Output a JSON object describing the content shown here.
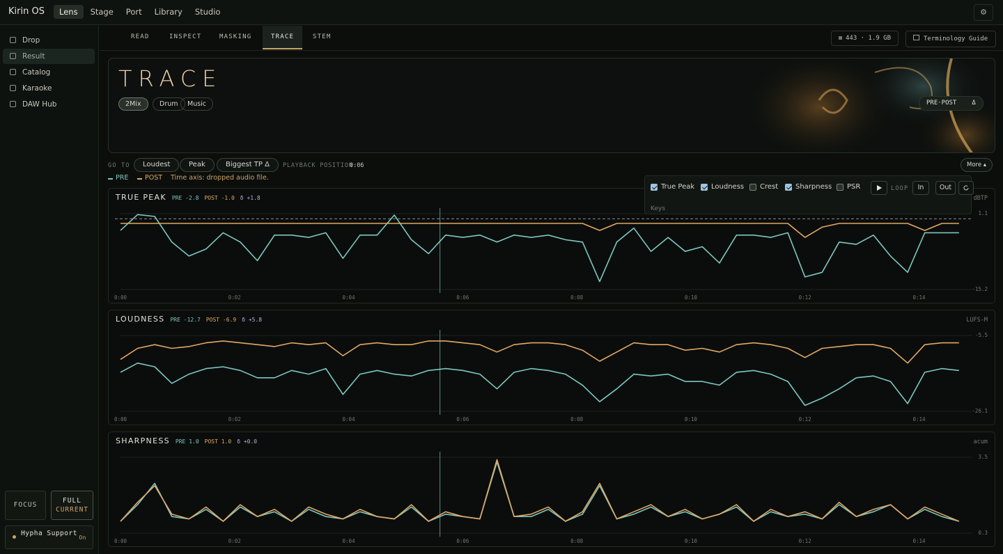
{
  "top_bar": {
    "brand": "Kirin OS",
    "tabs": [
      "Lens",
      "Stage",
      "Port",
      "Library",
      "Studio"
    ],
    "active_tab": 0,
    "settings_icon": "⚙"
  },
  "sidebar": {
    "items": [
      "Drop",
      "Result",
      "Catalog",
      "Karaoke",
      "DAW Hub"
    ],
    "active": 1,
    "focus": "FOCUS",
    "full": "FULL",
    "full_sub": "CURRENT",
    "support": "Hypha Support",
    "support_state": "On"
  },
  "sub_tabs": {
    "items": [
      "READ",
      "INSPECT",
      "MASKING",
      "TRACE",
      "STEM"
    ],
    "active": 3,
    "stats": "443 · 1.9 GB",
    "guide": "Terminology Guide"
  },
  "hero": {
    "title": "TRACE",
    "chips": [
      "2Mix",
      "Drum",
      "Music"
    ],
    "active_chip": 0,
    "compare": "PRE·POST",
    "delta": "Δ"
  },
  "goto": {
    "label": "GO TO",
    "buttons": [
      "Loudest",
      "Peak",
      "Biggest TP Δ"
    ],
    "position_label": "PLAYBACK POSITION",
    "position": "0:06",
    "more": "More ▴"
  },
  "legend_note": "Time axis: dropped audio file.",
  "options": {
    "checks": [
      {
        "label": "True Peak",
        "checked": true
      },
      {
        "label": "Loudness",
        "checked": true
      },
      {
        "label": "Crest",
        "checked": false
      },
      {
        "label": "Sharpness",
        "checked": true
      },
      {
        "label": "PSR",
        "checked": false
      }
    ],
    "loop": "LOOP",
    "loop_buttons": [
      "In",
      "Out"
    ],
    "keys": "Keys"
  },
  "chart_data": [
    {
      "type": "line",
      "title": "TRUE PEAK",
      "unit": "dBTP",
      "stats": [
        {
          "label": "PRE",
          "value": "-2.8"
        },
        {
          "label": "POST",
          "value": "-1.0"
        },
        {
          "label": "δ",
          "value": "+1.8"
        }
      ],
      "x": [
        0,
        0.3,
        0.6,
        0.9,
        1.2,
        1.5,
        1.8,
        2.1,
        2.4,
        2.7,
        3,
        3.3,
        3.6,
        3.9,
        4.2,
        4.5,
        4.8,
        5.1,
        5.4,
        5.7,
        6,
        6.3,
        6.6,
        6.9,
        7.2,
        7.5,
        7.8,
        8.1,
        8.4,
        8.7,
        9,
        9.3,
        9.6,
        9.9,
        10.2,
        10.5,
        10.8,
        11.1,
        11.4,
        11.7,
        12,
        12.3,
        12.6,
        12.9,
        13.2,
        13.5,
        13.8,
        14.1,
        14.4,
        14.7
      ],
      "series": [
        {
          "name": "PRE",
          "color": "#7cc8c0",
          "values": [
            -2.5,
            0.9,
            0.5,
            -5,
            -8,
            -6.5,
            -3,
            -5,
            -9,
            -3.5,
            -3.5,
            -4,
            -3,
            -8.5,
            -3.5,
            -3.5,
            0.8,
            -4.5,
            -7.5,
            -3.5,
            -4,
            -3.5,
            -5,
            -3.5,
            -4,
            -3.5,
            -4.5,
            -5,
            -13.5,
            -5,
            -2,
            -7,
            -4,
            -7,
            -6,
            -9.5,
            -3.5,
            -3.5,
            -4,
            -3,
            -12.5,
            -11.5,
            -5,
            -5.5,
            -3.5,
            -8,
            -11.5,
            -3,
            -3,
            -3
          ]
        },
        {
          "name": "POST",
          "color": "#e2a864",
          "values": [
            -1,
            -1,
            -1,
            -1,
            -1,
            -1,
            -1,
            -1,
            -1,
            -1,
            -1,
            -1,
            -1,
            -1,
            -1,
            -1,
            -1,
            -1,
            -1,
            -1,
            -1,
            -1,
            -1,
            -1,
            -1,
            -1,
            -1,
            -1,
            -2.5,
            -1,
            -1,
            -1,
            -1,
            -1,
            -1,
            -1,
            -1,
            -1,
            -1,
            -1,
            -4,
            -1.8,
            -1,
            -1,
            -1,
            -1,
            -1,
            -2.5,
            -1,
            -1
          ]
        }
      ],
      "xlim": [
        0,
        14.8
      ],
      "xticks": [
        {
          "value": 0,
          "label": "0:00"
        },
        {
          "value": 2,
          "label": "0:02"
        },
        {
          "value": 4,
          "label": "0:04"
        },
        {
          "value": 6,
          "label": "0:06"
        },
        {
          "value": 8,
          "label": "0:08"
        },
        {
          "value": 10,
          "label": "0:10"
        },
        {
          "value": 12,
          "label": "0:12"
        },
        {
          "value": 14,
          "label": "0:14"
        }
      ],
      "ylim": [
        -15.2,
        1.1
      ],
      "yticks": [
        1.1,
        -15.2
      ],
      "reference_line": 0,
      "playhead": 5.6,
      "grid": true
    },
    {
      "type": "line",
      "title": "LOUDNESS",
      "unit": "LUFS-M",
      "stats": [
        {
          "label": "PRE",
          "value": "-12.7"
        },
        {
          "label": "POST",
          "value": "-6.9"
        },
        {
          "label": "δ",
          "value": "+5.8"
        }
      ],
      "x": [
        0,
        0.3,
        0.6,
        0.9,
        1.2,
        1.5,
        1.8,
        2.1,
        2.4,
        2.7,
        3,
        3.3,
        3.6,
        3.9,
        4.2,
        4.5,
        4.8,
        5.1,
        5.4,
        5.7,
        6,
        6.3,
        6.6,
        6.9,
        7.2,
        7.5,
        7.8,
        8.1,
        8.4,
        8.7,
        9,
        9.3,
        9.6,
        9.9,
        10.2,
        10.5,
        10.8,
        11.1,
        11.4,
        11.7,
        12,
        12.3,
        12.6,
        12.9,
        13.2,
        13.5,
        13.8,
        14.1,
        14.4,
        14.7
      ],
      "series": [
        {
          "name": "PRE",
          "color": "#7cc8c0",
          "values": [
            -15.5,
            -13,
            -14,
            -18.5,
            -16,
            -14.5,
            -14,
            -15,
            -17,
            -17,
            -15,
            -16,
            -14.5,
            -21.5,
            -16,
            -15,
            -16,
            -16.5,
            -15,
            -14.5,
            -15,
            -16,
            -20,
            -15.5,
            -14.5,
            -15,
            -16,
            -19,
            -23.5,
            -20,
            -16,
            -16.5,
            -16,
            -18,
            -18,
            -19,
            -15.5,
            -15,
            -16,
            -18,
            -24.5,
            -22.5,
            -20,
            -17,
            -16.5,
            -18,
            -24,
            -15.5,
            -14.5,
            -15
          ]
        },
        {
          "name": "POST",
          "color": "#e2a864",
          "values": [
            -12,
            -9,
            -8,
            -9,
            -8.5,
            -7.5,
            -7,
            -7.5,
            -8,
            -8.5,
            -7.5,
            -8,
            -7.5,
            -11,
            -8,
            -7.5,
            -8,
            -8,
            -7,
            -7,
            -7.5,
            -8,
            -10,
            -8,
            -7.5,
            -7.5,
            -8,
            -9.5,
            -12.5,
            -10,
            -7.5,
            -8,
            -8,
            -9.5,
            -9,
            -10,
            -8,
            -7.5,
            -8,
            -9,
            -11.5,
            -9,
            -8.5,
            -8,
            -8,
            -9,
            -13,
            -8,
            -7.5,
            -7.5
          ]
        }
      ],
      "xlim": [
        0,
        14.8
      ],
      "xticks": [
        {
          "value": 0,
          "label": "0:00"
        },
        {
          "value": 2,
          "label": "0:02"
        },
        {
          "value": 4,
          "label": "0:04"
        },
        {
          "value": 6,
          "label": "0:06"
        },
        {
          "value": 8,
          "label": "0:08"
        },
        {
          "value": 10,
          "label": "0:10"
        },
        {
          "value": 12,
          "label": "0:12"
        },
        {
          "value": 14,
          "label": "0:14"
        }
      ],
      "ylim": [
        -26.1,
        -5.5
      ],
      "yticks": [
        -5.5,
        -26.1
      ],
      "playhead": 5.6,
      "grid": true
    },
    {
      "type": "line",
      "title": "SHARPNESS",
      "unit": "acum",
      "stats": [
        {
          "label": "PRE",
          "value": "1.0"
        },
        {
          "label": "POST",
          "value": "1.0"
        },
        {
          "label": "δ",
          "value": "+0.0"
        }
      ],
      "x": [
        0,
        0.3,
        0.6,
        0.9,
        1.2,
        1.5,
        1.8,
        2.1,
        2.4,
        2.7,
        3,
        3.3,
        3.6,
        3.9,
        4.2,
        4.5,
        4.8,
        5.1,
        5.4,
        5.7,
        6,
        6.3,
        6.6,
        6.9,
        7.2,
        7.5,
        7.8,
        8.1,
        8.4,
        8.7,
        9,
        9.3,
        9.6,
        9.9,
        10.2,
        10.5,
        10.8,
        11.1,
        11.4,
        11.7,
        12,
        12.3,
        12.6,
        12.9,
        13.2,
        13.5,
        13.8,
        14.1,
        14.4,
        14.7
      ],
      "series": [
        {
          "name": "PRE",
          "color": "#7cc8c0",
          "values": [
            0.8,
            1.5,
            2.4,
            1.0,
            0.9,
            1.3,
            0.8,
            1.4,
            1.0,
            1.2,
            0.8,
            1.3,
            1.0,
            0.9,
            1.2,
            1.0,
            0.9,
            1.4,
            0.8,
            1.1,
            1.0,
            0.9,
            3.3,
            1.0,
            1.0,
            1.3,
            0.8,
            1.1,
            2.3,
            0.9,
            1.1,
            1.4,
            1.0,
            1.2,
            0.9,
            1.1,
            1.4,
            0.8,
            1.2,
            1.0,
            1.1,
            0.9,
            1.5,
            1.0,
            1.2,
            1.5,
            0.9,
            1.3,
            1.0,
            0.8
          ]
        },
        {
          "name": "POST",
          "color": "#e2a864",
          "values": [
            0.8,
            1.6,
            2.3,
            1.1,
            0.9,
            1.4,
            0.8,
            1.5,
            1.0,
            1.3,
            0.8,
            1.4,
            1.1,
            0.9,
            1.3,
            1.0,
            0.9,
            1.5,
            0.8,
            1.2,
            1.0,
            0.9,
            3.4,
            1.0,
            1.1,
            1.4,
            0.8,
            1.2,
            2.4,
            0.9,
            1.2,
            1.5,
            1.0,
            1.3,
            0.9,
            1.1,
            1.5,
            0.8,
            1.3,
            1.0,
            1.2,
            0.9,
            1.6,
            1.0,
            1.3,
            1.5,
            0.9,
            1.4,
            1.1,
            0.8
          ]
        }
      ],
      "xlim": [
        0,
        14.8
      ],
      "xticks": [
        {
          "value": 0,
          "label": "0:00"
        },
        {
          "value": 2,
          "label": "0:02"
        },
        {
          "value": 4,
          "label": "0:04"
        },
        {
          "value": 6,
          "label": "0:06"
        },
        {
          "value": 8,
          "label": "0:08"
        },
        {
          "value": 10,
          "label": "0:10"
        },
        {
          "value": 12,
          "label": "0:12"
        },
        {
          "value": 14,
          "label": "0:14"
        }
      ],
      "ylim": [
        0.3,
        3.5
      ],
      "yticks": [
        3.5,
        0.3
      ],
      "playhead": 5.6,
      "grid": true
    }
  ]
}
